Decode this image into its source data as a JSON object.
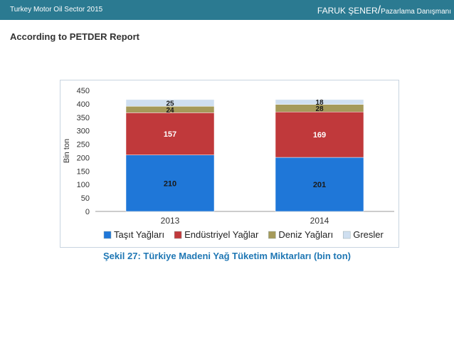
{
  "header": {
    "left_text": "Turkey Motor Oil Sector 2015",
    "author": "FARUK ŞENER",
    "role": "Pazarlama Danışmanı"
  },
  "subtitle": "According to PETDER Report",
  "caption": "Şekil 27: Türkiye Madeni Yağ Tüketim Miktarları (bin ton)",
  "colors": {
    "header_bg": "#2b7a91",
    "tasit": "#1f77d8",
    "endustriyel": "#c0393b",
    "deniz": "#a59a5a",
    "gresler": "#cfdff0"
  },
  "chart_data": {
    "type": "bar",
    "stacked": true,
    "categories": [
      "2013",
      "2014"
    ],
    "ylabel": "Bin ton",
    "ylim": [
      0,
      450
    ],
    "yticks": [
      0,
      50,
      100,
      150,
      200,
      250,
      300,
      350,
      400,
      450
    ],
    "legend_position": "bottom",
    "series": [
      {
        "name": "Taşıt Yağları",
        "values": [
          210,
          201
        ],
        "color": "#1f77d8"
      },
      {
        "name": "Endüstriyel Yağlar",
        "values": [
          157,
          169
        ],
        "color": "#c0393b"
      },
      {
        "name": "Deniz Yağları",
        "values": [
          24,
          28
        ],
        "color": "#a59a5a"
      },
      {
        "name": "Gresler",
        "values": [
          25,
          18
        ],
        "color": "#cfdff0"
      }
    ]
  }
}
